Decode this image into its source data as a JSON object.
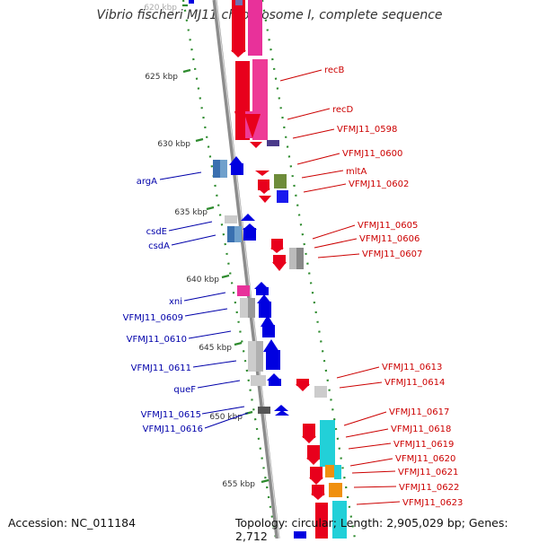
{
  "title": "Vibrio fischeri MJ11 chromosome I, complete sequence",
  "footer": {
    "accession": "Accession: NC_011184",
    "topology": "Topology: circular; Length: 2,905,029 bp; Genes: 2,712"
  },
  "scale": {
    "ticks": [
      {
        "label": "620 kbp"
      },
      {
        "label": "625 kbp"
      },
      {
        "label": "630 kbp"
      },
      {
        "label": "635 kbp"
      },
      {
        "label": "640 kbp"
      },
      {
        "label": "645 kbp"
      },
      {
        "label": "650 kbp"
      },
      {
        "label": "655 kbp"
      }
    ]
  },
  "genes": {
    "reverse_strand": [
      {
        "name": "argA"
      },
      {
        "name": "csdE"
      },
      {
        "name": "csdA"
      },
      {
        "name": "xni"
      },
      {
        "name": "VFMJ11_0609"
      },
      {
        "name": "VFMJ11_0610"
      },
      {
        "name": "VFMJ11_0611"
      },
      {
        "name": "queF"
      },
      {
        "name": "VFMJ11_0615"
      },
      {
        "name": "VFMJ11_0616"
      }
    ],
    "forward_strand": [
      {
        "name": "recB"
      },
      {
        "name": "recD"
      },
      {
        "name": "VFMJ11_0598"
      },
      {
        "name": "VFMJ11_0600"
      },
      {
        "name": "mltA"
      },
      {
        "name": "VFMJ11_0602"
      },
      {
        "name": "VFMJ11_0605"
      },
      {
        "name": "VFMJ11_0606"
      },
      {
        "name": "VFMJ11_0607"
      },
      {
        "name": "VFMJ11_0613"
      },
      {
        "name": "VFMJ11_0614"
      },
      {
        "name": "VFMJ11_0617"
      },
      {
        "name": "VFMJ11_0618"
      },
      {
        "name": "VFMJ11_0619"
      },
      {
        "name": "VFMJ11_0620"
      },
      {
        "name": "VFMJ11_0621"
      },
      {
        "name": "VFMJ11_0622"
      },
      {
        "name": "VFMJ11_0623"
      }
    ]
  },
  "colors": {
    "reverse_label": "#0000aa",
    "forward_label": "#cc0000",
    "backbone": "#8c8c8c",
    "tick_mark": "#2e8b2e"
  }
}
